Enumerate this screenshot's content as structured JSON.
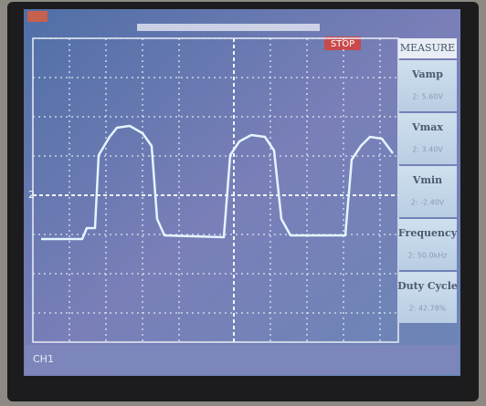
{
  "header": {
    "status": "STOP",
    "channel_marker": "2"
  },
  "measure": {
    "title": "MEASURE",
    "items": [
      {
        "label": "Vamp",
        "value": "2: 5.60V"
      },
      {
        "label": "Vmax",
        "value": "2: 3.40V"
      },
      {
        "label": "Vmin",
        "value": "2: -2.40V"
      },
      {
        "label": "Frequency",
        "value": "2: 50.0kHz"
      },
      {
        "label": "Duty Cycle",
        "value": "2: 42.78%"
      }
    ]
  },
  "footer": {
    "channel": "CH1"
  }
}
